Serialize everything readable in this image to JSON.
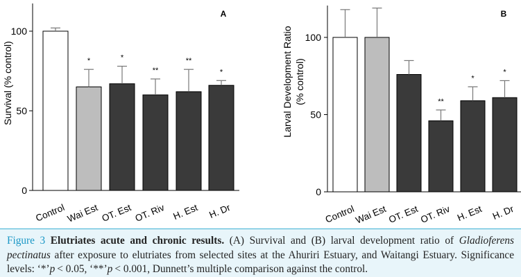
{
  "chart_data": [
    {
      "type": "bar",
      "panel_label": "A",
      "ylabel": "Survival (% control)",
      "ylim": [
        0,
        120
      ],
      "yticks": [
        0,
        50,
        100
      ],
      "categories": [
        "Control",
        "Wai Est",
        "OT. Est",
        "OT. Riv",
        "H. Est",
        "H. Dr"
      ],
      "values": [
        100,
        65,
        67,
        60,
        62,
        66
      ],
      "errors": [
        2,
        11,
        11,
        10,
        14,
        3
      ],
      "significance": [
        "",
        "*",
        "*",
        "**",
        "**",
        "*"
      ],
      "colors": [
        "#ffffff",
        "#bdbdbd",
        "#3a3a3a",
        "#3a3a3a",
        "#3a3a3a",
        "#3a3a3a"
      ]
    },
    {
      "type": "bar",
      "panel_label": "B",
      "ylabel": "Larval Development Ratio\n(% control)",
      "ylim": [
        0,
        120
      ],
      "yticks": [
        0,
        50,
        100
      ],
      "categories": [
        "Control",
        "Wai Est",
        "OT. Est",
        "OT. Riv",
        "H. Est",
        "H. Dr"
      ],
      "values": [
        100,
        100,
        76,
        46,
        59,
        61
      ],
      "errors": [
        18,
        19,
        9,
        7,
        9,
        11
      ],
      "significance": [
        "",
        "",
        "",
        "**",
        "*",
        "*"
      ],
      "colors": [
        "#ffffff",
        "#bdbdbd",
        "#3a3a3a",
        "#3a3a3a",
        "#3a3a3a",
        "#3a3a3a"
      ]
    }
  ],
  "caption": {
    "label": "Figure 3",
    "title": "Elutriates acute and chronic results.",
    "text_a": "(A) Survival and (B) larval development ratio of",
    "species": "Gladioferens pectinatus",
    "text_b": "after exposure to elutriates from selected sites at the Ahuriri Estuary, and Waitangi Estuary. Significance levels: ‘*’",
    "p1": "p < 0.05, ‘**’",
    "p2": "p < 0.001, Dunnett’s multiple comparison against the control."
  },
  "colors": {
    "caption_accent": "#1a97c6",
    "caption_bg": "#e8f5fa"
  }
}
